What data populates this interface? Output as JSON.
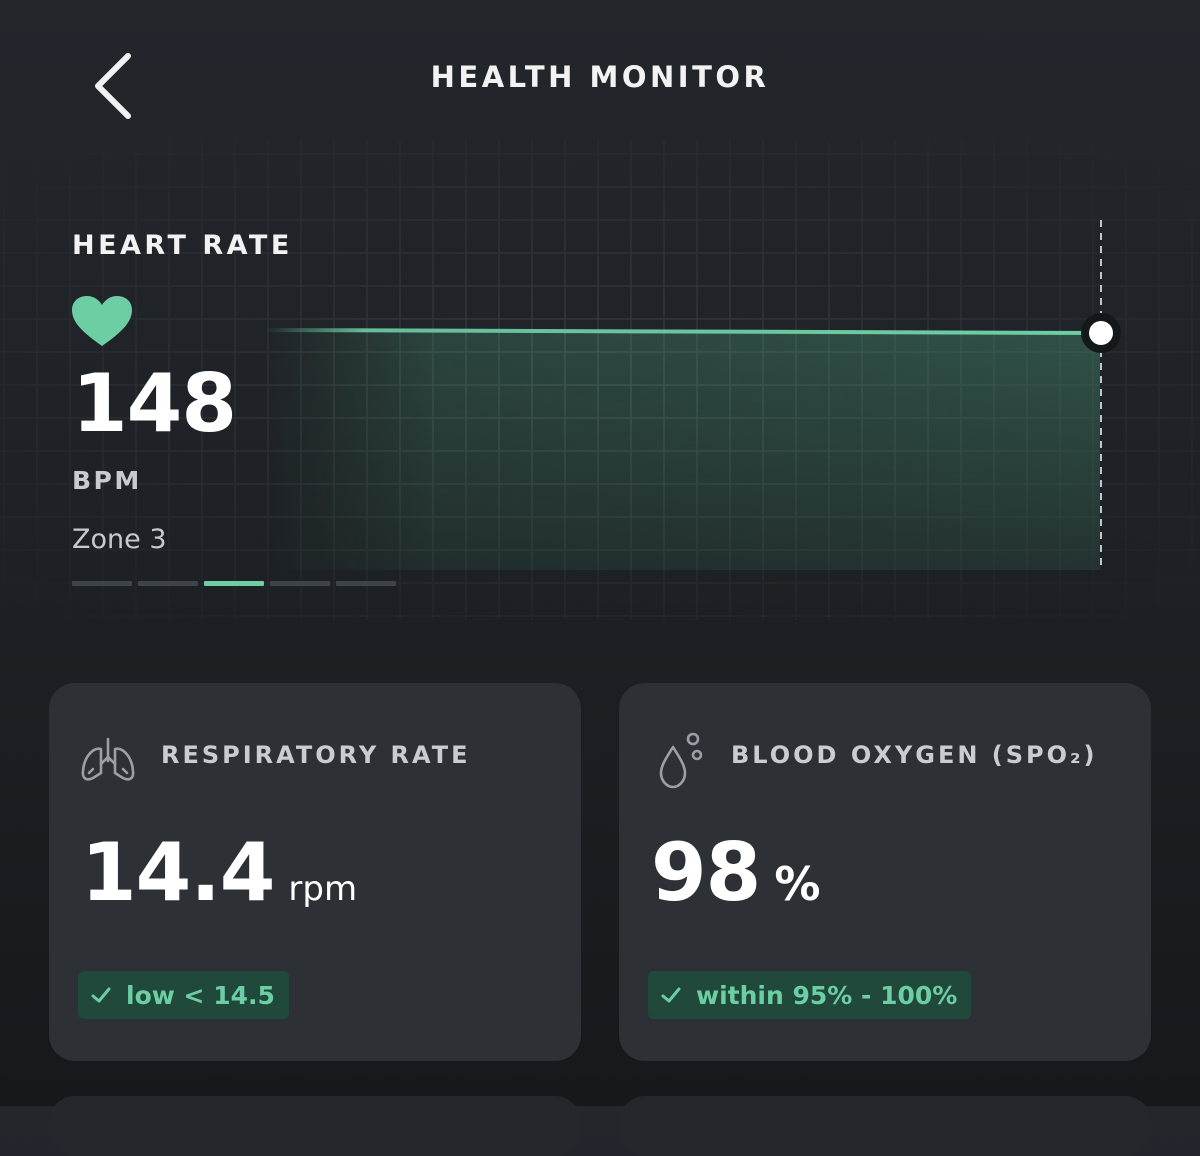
{
  "header": {
    "title": "HEALTH MONITOR",
    "back_icon": "chevron-left-icon"
  },
  "heart_rate": {
    "label": "HEART RATE",
    "icon": "heart-icon",
    "value": "148",
    "unit": "BPM",
    "zone_label": "Zone 3",
    "zone_count": 5,
    "active_zone": 3
  },
  "metrics": {
    "respiratory": {
      "icon": "lungs-icon",
      "title": "RESPIRATORY RATE",
      "value": "14.4",
      "unit": "rpm",
      "status": "low < 14.5"
    },
    "blood_oxygen": {
      "icon": "droplet-icon",
      "title": "BLOOD OXYGEN (SPO₂)",
      "value": "98",
      "unit": "%",
      "status": "within 95% - 100%"
    }
  },
  "colors": {
    "accent": "#6dcea4",
    "badge_bg": "#20493b",
    "card_bg": "#2d3135",
    "page_bg": "#1e2226"
  }
}
